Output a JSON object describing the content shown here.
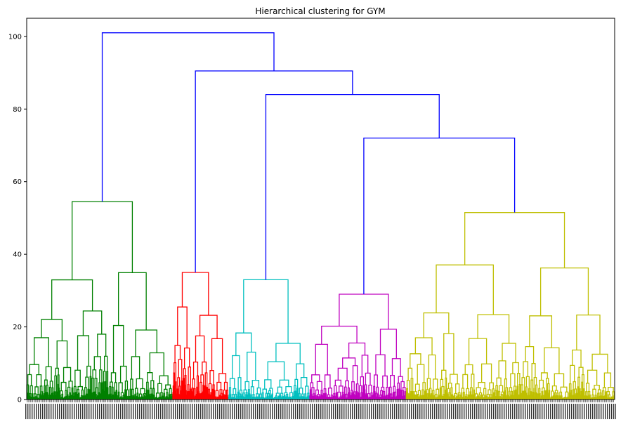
{
  "chart_data": {
    "type": "dendrogram",
    "title": "Hierarchical clustering for GYM",
    "xlabel": "",
    "ylabel": "",
    "ylim": [
      0,
      105
    ],
    "yticks": [
      0,
      20,
      40,
      60,
      80,
      100
    ],
    "grid": false,
    "leaf_labels_note": "",
    "leaf_count_estimate": 1000,
    "clusters": [
      {
        "color": "#008000",
        "leaf_range": [
          0,
          248
        ],
        "merge_height": 54.5
      },
      {
        "color": "#ff0000",
        "leaf_range": [
          248,
          343
        ],
        "merge_height": 35.0
      },
      {
        "color": "#00bfbf",
        "leaf_range": [
          343,
          481
        ],
        "merge_height": 33.0
      },
      {
        "color": "#bf00bf",
        "leaf_range": [
          481,
          645
        ],
        "merge_height": 29.0
      },
      {
        "color": "#bfbf00",
        "leaf_range": [
          645,
          1000
        ],
        "merge_height": 51.5
      }
    ],
    "top_links": [
      {
        "children": [
          "cyan",
          "magenta_yellow"
        ],
        "height": 84.0
      },
      {
        "children": [
          "magenta",
          "yellow"
        ],
        "height": 72.0
      },
      {
        "children": [
          "red",
          "cyan_magenta_yellow"
        ],
        "height": 90.5
      },
      {
        "children": [
          "green",
          "rest"
        ],
        "height": 101.0
      }
    ],
    "above_threshold_color": "#0000ff"
  }
}
